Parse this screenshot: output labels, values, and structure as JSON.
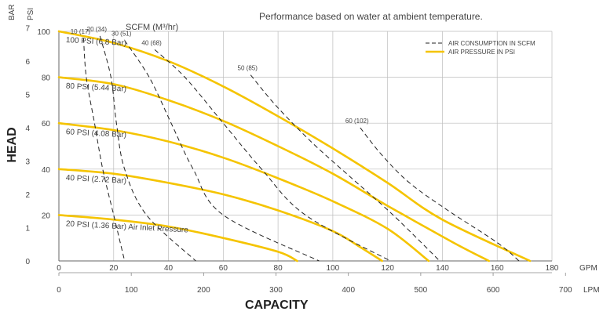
{
  "chart_data": {
    "type": "line",
    "title": "Performance based on water at ambient temperature.",
    "xlabel": "CAPACITY",
    "ylabel": "HEAD",
    "x_units_primary": "GPM",
    "x_units_secondary": "LPM",
    "y_units_left": "BAR",
    "y_units_right": "PSI",
    "scfm_header": "SCFM (M³/hr)",
    "xlim_gpm": [
      0,
      180
    ],
    "ylim_psi": [
      0,
      100
    ],
    "xticks_gpm": [
      "0",
      "20",
      "40",
      "60",
      "80",
      "100",
      "120",
      "140",
      "160",
      "180"
    ],
    "xticks_lpm": [
      "0",
      "100",
      "200",
      "300",
      "400",
      "500",
      "600",
      "700"
    ],
    "yticks_bar": [
      "0",
      "1",
      "2",
      "3",
      "4",
      "5",
      "6",
      "7"
    ],
    "yticks_psi": [
      "20",
      "40",
      "60",
      "80",
      "100"
    ],
    "grid": true,
    "legend_position": "top-right",
    "legend": [
      {
        "label": "AIR CONSUMPTION IN SCFM",
        "style": "dashed",
        "color": "#222222"
      },
      {
        "label": "AIR PRESSURE IN PSI",
        "style": "solid",
        "color": "#f5c400"
      }
    ],
    "pressure_series": [
      {
        "label": "100 PSI (6.8 Bar)",
        "points": [
          [
            0,
            100
          ],
          [
            20,
            95
          ],
          [
            40,
            87
          ],
          [
            60,
            76
          ],
          [
            80,
            63
          ],
          [
            100,
            49
          ],
          [
            120,
            34
          ],
          [
            140,
            18
          ],
          [
            172,
            0
          ]
        ]
      },
      {
        "label": "80 PSI (5.44 Bar)",
        "points": [
          [
            0,
            80
          ],
          [
            20,
            77
          ],
          [
            40,
            70
          ],
          [
            60,
            61
          ],
          [
            80,
            50
          ],
          [
            100,
            38
          ],
          [
            120,
            24
          ],
          [
            144,
            8
          ],
          [
            157,
            0
          ]
        ]
      },
      {
        "label": "60 PSI (4.08 Bar)",
        "points": [
          [
            0,
            60
          ],
          [
            20,
            57
          ],
          [
            40,
            52
          ],
          [
            60,
            45
          ],
          [
            80,
            36
          ],
          [
            100,
            26
          ],
          [
            120,
            14
          ],
          [
            135,
            0
          ]
        ]
      },
      {
        "label": "40 PSI (2.72 Bar)",
        "points": [
          [
            0,
            40
          ],
          [
            20,
            38
          ],
          [
            40,
            34
          ],
          [
            60,
            29
          ],
          [
            80,
            22
          ],
          [
            100,
            13
          ],
          [
            110,
            6
          ],
          [
            118,
            0
          ]
        ]
      },
      {
        "label": "20 PSI (1.36 Bar) Air Inlet Pressure",
        "points": [
          [
            0,
            20
          ],
          [
            20,
            18
          ],
          [
            40,
            15
          ],
          [
            60,
            10
          ],
          [
            80,
            4
          ],
          [
            87,
            0
          ]
        ]
      }
    ],
    "scfm_series": [
      {
        "label": "10 (17)",
        "points": [
          [
            9,
            97
          ],
          [
            10,
            80
          ],
          [
            13,
            60
          ],
          [
            16,
            40
          ],
          [
            20,
            20
          ],
          [
            24,
            0
          ]
        ]
      },
      {
        "label": "20 (34)",
        "points": [
          [
            15,
            98
          ],
          [
            19,
            80
          ],
          [
            21,
            60
          ],
          [
            24,
            40
          ],
          [
            32,
            20
          ],
          [
            50,
            0
          ]
        ]
      },
      {
        "label": "30 (51)",
        "points": [
          [
            24,
            96
          ],
          [
            33,
            80
          ],
          [
            41,
            60
          ],
          [
            49,
            40
          ],
          [
            60,
            20
          ],
          [
            95,
            0
          ]
        ]
      },
      {
        "label": "40 (68)",
        "points": [
          [
            35,
            92
          ],
          [
            46,
            80
          ],
          [
            60,
            60
          ],
          [
            74,
            40
          ],
          [
            90,
            20
          ],
          [
            121,
            0
          ]
        ]
      },
      {
        "label": "50 (85)",
        "points": [
          [
            70,
            81
          ],
          [
            79,
            68
          ],
          [
            92,
            52
          ],
          [
            106,
            37
          ],
          [
            122,
            20
          ],
          [
            139,
            0
          ]
        ]
      },
      {
        "label": "60 (102)",
        "points": [
          [
            110,
            58
          ],
          [
            118,
            46
          ],
          [
            128,
            34
          ],
          [
            142,
            22
          ],
          [
            160,
            8
          ],
          [
            168,
            0
          ]
        ]
      }
    ]
  }
}
